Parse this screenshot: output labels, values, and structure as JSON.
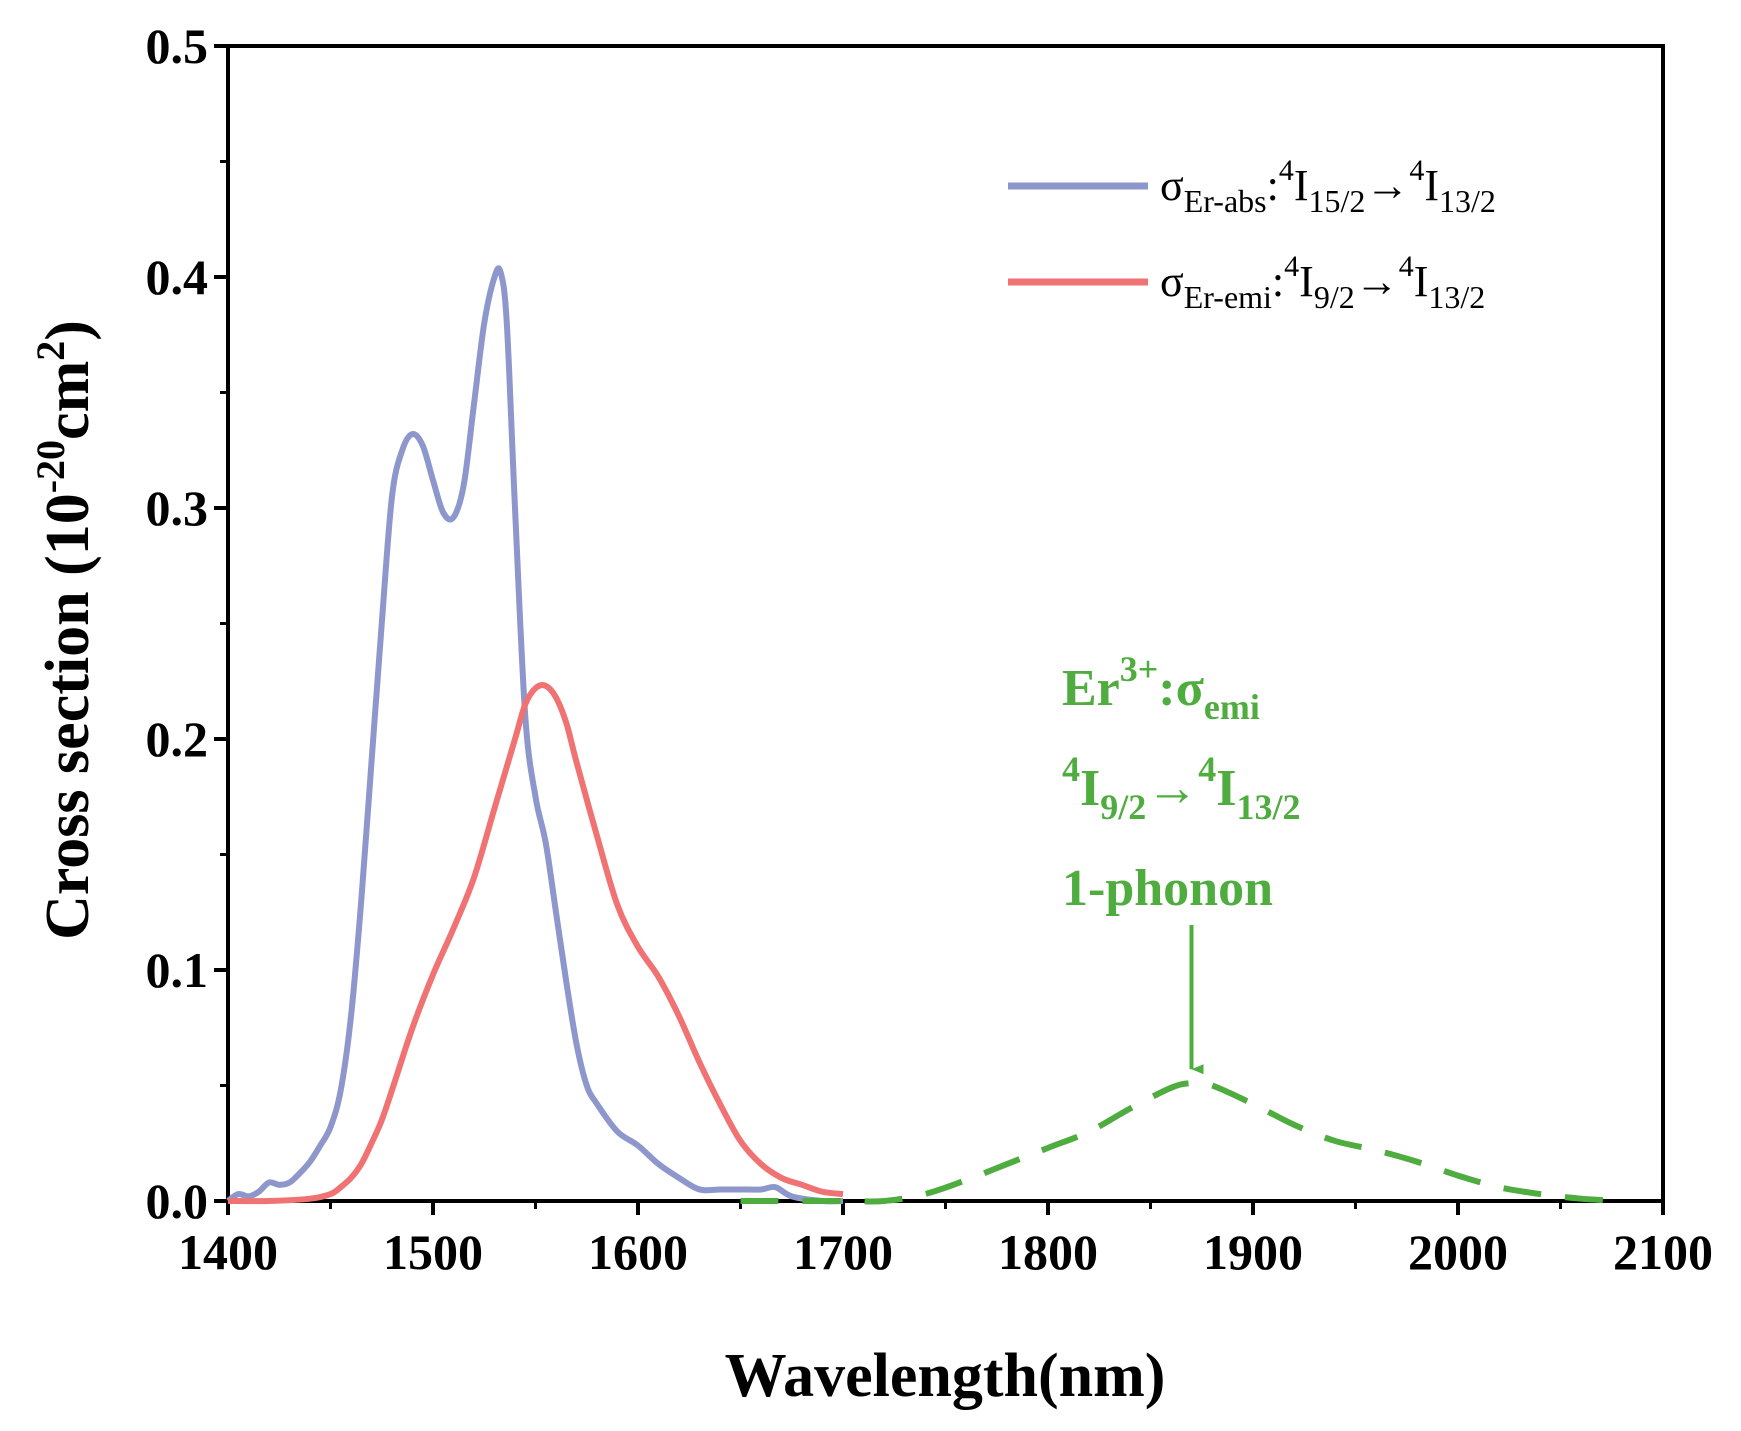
{
  "chart_data": {
    "type": "line",
    "xlabel": "Wavelength(nm)",
    "ylabel": {
      "main": "Cross section (10",
      "exp1": "-20",
      "unit": "cm",
      "exp2": "2",
      "close": ")"
    },
    "xlim": [
      1400,
      2100
    ],
    "ylim": [
      0.0,
      0.5
    ],
    "x_ticks": [
      1400,
      1500,
      1600,
      1700,
      1800,
      1900,
      2000,
      2100
    ],
    "x_tick_labels": [
      "1400",
      "1500",
      "1600",
      "1700",
      "1800",
      "1900",
      "2000",
      "2100"
    ],
    "y_ticks": [
      0.0,
      0.1,
      0.2,
      0.3,
      0.4,
      0.5
    ],
    "y_tick_labels": [
      "0.0",
      "0.1",
      "0.2",
      "0.3",
      "0.4",
      "0.5"
    ],
    "legend_position": "top-right",
    "series": [
      {
        "name": "σEr-abs:4I15/2→4I13/2",
        "legend": {
          "sym": "σ",
          "sub": "Er-abs",
          "mid": ":",
          "sup1": "4",
          "lev1": "I",
          "sub1": "15/2",
          "arrow": "→",
          "sup2": "4",
          "lev2": "I",
          "sub2": "13/2"
        },
        "color": "#8d97cb",
        "style": "solid",
        "x": [
          1400,
          1405,
          1410,
          1415,
          1420,
          1425,
          1430,
          1435,
          1440,
          1445,
          1450,
          1455,
          1460,
          1465,
          1470,
          1475,
          1480,
          1485,
          1490,
          1495,
          1500,
          1505,
          1510,
          1515,
          1520,
          1525,
          1530,
          1533,
          1536,
          1540,
          1545,
          1550,
          1555,
          1560,
          1565,
          1570,
          1575,
          1580,
          1590,
          1600,
          1610,
          1620,
          1630,
          1640,
          1650,
          1660,
          1667,
          1675,
          1690,
          1700
        ],
        "y": [
          0.0,
          0.003,
          0.002,
          0.004,
          0.008,
          0.007,
          0.008,
          0.012,
          0.017,
          0.024,
          0.032,
          0.048,
          0.08,
          0.13,
          0.19,
          0.25,
          0.305,
          0.325,
          0.332,
          0.327,
          0.312,
          0.298,
          0.296,
          0.31,
          0.345,
          0.38,
          0.4,
          0.402,
          0.38,
          0.3,
          0.21,
          0.175,
          0.155,
          0.125,
          0.095,
          0.068,
          0.05,
          0.042,
          0.03,
          0.024,
          0.016,
          0.01,
          0.005,
          0.005,
          0.005,
          0.005,
          0.006,
          0.002,
          0.0,
          0.0
        ]
      },
      {
        "name": "σEr-emi:4I9/2→4I13/2",
        "legend": {
          "sym": "σ",
          "sub": "Er-emi",
          "mid": ":",
          "sup1": "4",
          "lev1": "I",
          "sub1": "9/2",
          "arrow": "→",
          "sup2": "4",
          "lev2": "I",
          "sub2": "13/2"
        },
        "color": "#f07272",
        "style": "solid",
        "x": [
          1400,
          1420,
          1440,
          1450,
          1455,
          1460,
          1465,
          1470,
          1475,
          1480,
          1490,
          1500,
          1510,
          1520,
          1530,
          1540,
          1545,
          1550,
          1555,
          1560,
          1565,
          1570,
          1580,
          1590,
          1600,
          1610,
          1620,
          1630,
          1640,
          1650,
          1660,
          1670,
          1680,
          1690,
          1700
        ],
        "y": [
          0.0,
          0.0,
          0.001,
          0.003,
          0.006,
          0.01,
          0.016,
          0.025,
          0.035,
          0.048,
          0.075,
          0.098,
          0.118,
          0.14,
          0.17,
          0.2,
          0.215,
          0.222,
          0.223,
          0.218,
          0.207,
          0.19,
          0.158,
          0.128,
          0.11,
          0.097,
          0.08,
          0.06,
          0.042,
          0.026,
          0.016,
          0.01,
          0.007,
          0.004,
          0.003
        ]
      },
      {
        "name": "Er3+:σemi 4I9/2→4I13/2 1-phonon",
        "color": "#4fac3f",
        "style": "dashed",
        "x": [
          1650,
          1700,
          1720,
          1740,
          1760,
          1780,
          1800,
          1820,
          1840,
          1860,
          1870,
          1880,
          1900,
          1920,
          1940,
          1960,
          1980,
          2000,
          2020,
          2040,
          2060,
          2080
        ],
        "y": [
          0.0,
          0.0,
          0.0,
          0.003,
          0.009,
          0.016,
          0.023,
          0.03,
          0.04,
          0.049,
          0.051,
          0.05,
          0.042,
          0.033,
          0.026,
          0.022,
          0.017,
          0.011,
          0.006,
          0.003,
          0.001,
          0.0
        ]
      }
    ],
    "annotation": {
      "line1": {
        "a": "Er",
        "sup": "3+",
        "b": ":σ",
        "sub": "emi"
      },
      "line2": {
        "sup1": "4",
        "lev1": "I",
        "sub1": "9/2",
        "arrow": "→",
        "sup2": "4",
        "lev2": "I",
        "sub2": "13/2"
      },
      "line3": "1-phonon",
      "color": "#4fac3f",
      "arrow_target": {
        "x": 1870,
        "y": 0.051
      }
    }
  }
}
